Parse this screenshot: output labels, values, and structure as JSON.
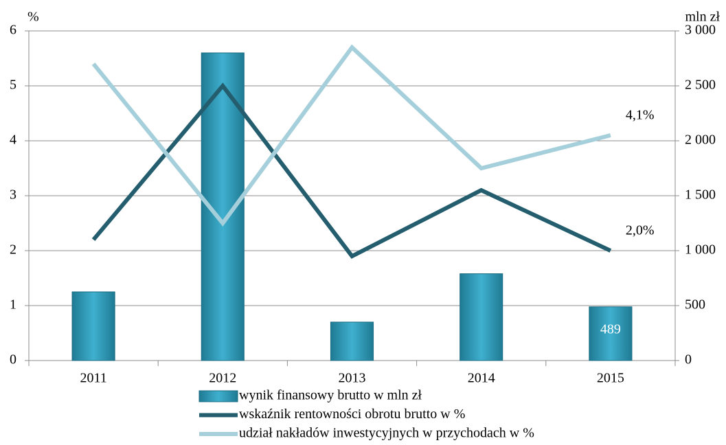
{
  "chart_data": {
    "type": "bar-line",
    "y_label": "%",
    "y2_label": "mln zł",
    "categories": [
      "2011",
      "2012",
      "2013",
      "2014",
      "2015"
    ],
    "series": [
      {
        "name": "wynik finansowy brutto w mln zł",
        "type": "bar",
        "axis": "y2",
        "color": "#2e9ab8",
        "values": [
          625,
          2800,
          350,
          790,
          489
        ],
        "value_labels": [
          null,
          null,
          null,
          null,
          "489"
        ]
      },
      {
        "name": "wskaźnik rentowności obrotu brutto w %",
        "type": "line",
        "axis": "y",
        "color": "#245e6e",
        "values": [
          2.2,
          5.0,
          1.9,
          3.1,
          2.0
        ],
        "value_labels": [
          null,
          null,
          null,
          null,
          "2,0%"
        ]
      },
      {
        "name": "udział nakładów inwestycyjnych w przychodach w %",
        "type": "line",
        "axis": "y",
        "color": "#a6cfdc",
        "values": [
          5.4,
          2.5,
          5.7,
          3.5,
          4.1
        ],
        "value_labels": [
          null,
          null,
          null,
          null,
          "4,1%"
        ]
      }
    ],
    "ylim": [
      0,
      6
    ],
    "yticks": [
      0,
      1,
      2,
      3,
      4,
      5,
      6
    ],
    "y2lim": [
      0,
      3000
    ],
    "y2ticks": [
      0,
      500,
      {
        "value": 1000,
        "label": "1 000"
      },
      {
        "value": 1500,
        "label": "1 500"
      },
      {
        "value": 2000,
        "label": "2 000"
      },
      {
        "value": 2500,
        "label": "2 500"
      },
      {
        "value": 3000,
        "label": "3 000"
      }
    ],
    "grid": true
  }
}
